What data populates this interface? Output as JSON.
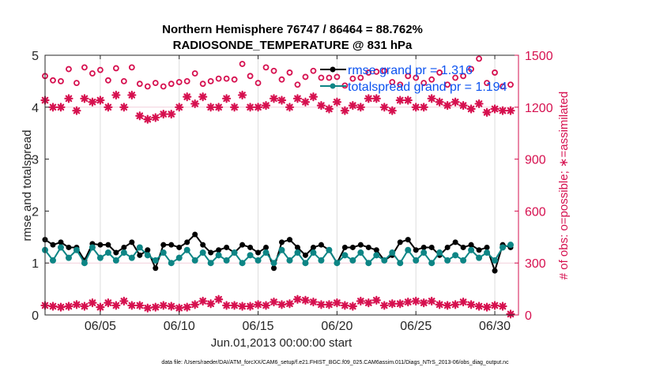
{
  "chart_data": {
    "type": "line",
    "title": [
      "Northern Hemisphere 76747 / 86464 = 88.762%",
      "RADIOSONDE_TEMPERATURE @ 831 hPa"
    ],
    "xlabel": "Jun.01,2013 00:00:00 start",
    "ylabel": "rmse and totalspread",
    "y2label": "# of obs: o=possible; ∗=assimilated",
    "footnote": "data file: /Users/raeder/DAI/ATM_forcXX/CAM6_setup/f.e21.FHIST_BGC.f09_025.CAM6assim.011/Diags_NTrS_2013-06/obs_diag_output.nc",
    "x_unit": "days since Jun.01 00:00 (12-hourly)",
    "xlim": [
      0.5,
      30.5
    ],
    "ylim": [
      0,
      5
    ],
    "y2lim": [
      0,
      1500
    ],
    "yticks": [
      0,
      1,
      2,
      3,
      4,
      5
    ],
    "y2ticks": [
      0,
      300,
      600,
      900,
      1200,
      1500
    ],
    "xticks": [
      {
        "value": 4,
        "label": "06/05"
      },
      {
        "value": 9,
        "label": "06/10"
      },
      {
        "value": 14,
        "label": "06/15"
      },
      {
        "value": 19,
        "label": "06/20"
      },
      {
        "value": 24,
        "label": "06/25"
      },
      {
        "value": 29,
        "label": "06/30"
      }
    ],
    "grid": {
      "x": true,
      "y2_at": [
        1200,
        300
      ]
    },
    "legend": {
      "placement": "top-right",
      "entries": [
        "rmse grand pr = 1.316",
        "totalspread grand pr = 1.194"
      ]
    },
    "colors": {
      "rmse": "#000000",
      "totalspread": "#0d8585",
      "obs": "#d6104f",
      "legend_text": "#0b52f0"
    },
    "x_start": 0.5,
    "x_step": 0.5,
    "series": [
      {
        "name": "rmse",
        "axis": "left",
        "style": "line-dot",
        "values": [
          1.45,
          1.35,
          1.4,
          1.3,
          1.3,
          1.05,
          1.37,
          1.35,
          1.35,
          1.2,
          1.3,
          1.4,
          1.15,
          1.25,
          0.9,
          1.35,
          1.35,
          1.3,
          1.4,
          1.55,
          1.35,
          1.2,
          1.25,
          1.3,
          1.2,
          1.35,
          1.3,
          1.2,
          1.3,
          0.9,
          1.4,
          1.45,
          1.3,
          1.15,
          1.3,
          1.35,
          1.25,
          1.0,
          1.3,
          1.3,
          1.35,
          1.3,
          1.25,
          1.05,
          1.15,
          1.4,
          1.45,
          1.25,
          1.3,
          1.3,
          1.15,
          1.3,
          1.4,
          1.3,
          1.35,
          1.25,
          1.3,
          0.85,
          1.35,
          1.3
        ]
      },
      {
        "name": "totalspread",
        "axis": "left",
        "style": "line-dot",
        "values": [
          1.25,
          1.05,
          1.3,
          1.1,
          1.25,
          1.0,
          1.3,
          1.1,
          1.2,
          1.05,
          1.2,
          1.1,
          1.3,
          1.15,
          1.05,
          1.2,
          1.0,
          1.1,
          1.25,
          1.05,
          1.2,
          1.0,
          1.15,
          1.05,
          1.2,
          1.0,
          1.15,
          1.05,
          1.2,
          1.0,
          1.25,
          1.05,
          1.2,
          1.0,
          1.2,
          1.05,
          1.25,
          1.0,
          1.15,
          1.05,
          1.2,
          1.0,
          1.15,
          1.05,
          1.2,
          1.0,
          1.25,
          1.05,
          1.2,
          1.0,
          1.2,
          1.05,
          1.15,
          1.05,
          1.25,
          1.1,
          1.2,
          1.05,
          1.3,
          1.35
        ]
      },
      {
        "name": "obs_possible",
        "axis": "right",
        "style": "open-circle",
        "values": [
          1380,
          1355,
          1350,
          1420,
          1340,
          1430,
          1395,
          1415,
          1355,
          1425,
          1350,
          1430,
          1335,
          1320,
          1340,
          1320,
          1335,
          1345,
          1350,
          1395,
          1335,
          1350,
          1365,
          1365,
          1360,
          1450,
          1380,
          1340,
          1430,
          1410,
          1360,
          1400,
          1330,
          1375,
          1410,
          1370,
          1370,
          1375,
          1325,
          1365,
          1370,
          1400,
          1405,
          1410,
          1345,
          1330,
          1380,
          1370,
          1340,
          1360,
          1400,
          1330,
          1370,
          1380,
          1420,
          1480,
          1340,
          1400,
          1320,
          1330
        ]
      },
      {
        "name": "obs_assimilated",
        "axis": "right",
        "style": "asterisk",
        "values": [
          1240,
          1200,
          1200,
          1250,
          1180,
          1250,
          1230,
          1240,
          1200,
          1270,
          1200,
          1270,
          1150,
          1130,
          1140,
          1160,
          1160,
          1200,
          1260,
          1220,
          1260,
          1200,
          1200,
          1250,
          1200,
          1270,
          1200,
          1200,
          1210,
          1250,
          1240,
          1200,
          1250,
          1230,
          1260,
          1210,
          1190,
          1230,
          1180,
          1210,
          1200,
          1250,
          1250,
          1200,
          1180,
          1240,
          1240,
          1200,
          1200,
          1250,
          1230,
          1210,
          1230,
          1210,
          1190,
          1220,
          1170,
          1190,
          1180,
          1180
        ]
      },
      {
        "name": "obs_assimilated_low",
        "axis": "right",
        "style": "asterisk",
        "values": [
          55,
          50,
          45,
          50,
          60,
          50,
          70,
          45,
          70,
          55,
          80,
          55,
          55,
          40,
          45,
          55,
          50,
          40,
          45,
          60,
          80,
          65,
          90,
          55,
          55,
          50,
          50,
          60,
          55,
          75,
          60,
          65,
          90,
          85,
          75,
          60,
          60,
          70,
          55,
          50,
          80,
          70,
          85,
          55,
          65,
          65,
          75,
          80,
          70,
          80,
          60,
          55,
          60,
          75,
          60,
          50,
          45,
          55,
          50,
          5
        ]
      }
    ]
  }
}
